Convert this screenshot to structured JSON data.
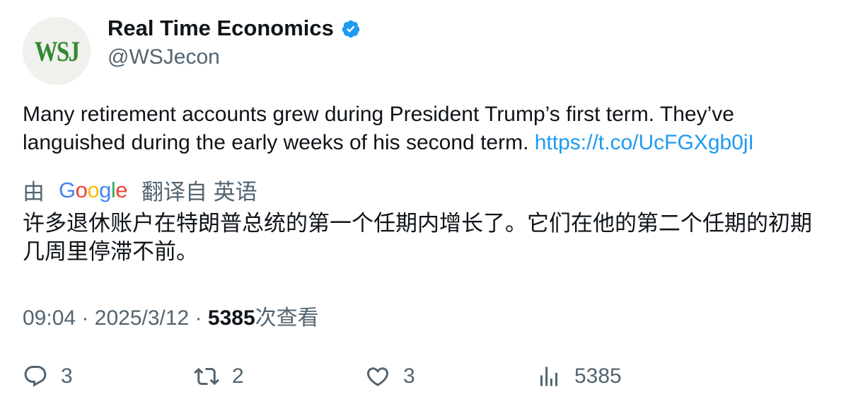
{
  "account": {
    "avatar_text": "WSJ",
    "name": "Real Time Economics",
    "handle": "@WSJecon",
    "verified_color": "#1d9bf0"
  },
  "tweet": {
    "text": "Many retirement accounts grew during President Trump’s first term. They’ve languished during the early weeks of his second term.",
    "link": "https://t.co/UcFGXgb0jI"
  },
  "translation": {
    "by": "由",
    "google_letters": [
      "G",
      "o",
      "o",
      "g",
      "l",
      "e"
    ],
    "translated_from": "翻译自 英语",
    "text": "许多退休账户在特朗普总统的第一个任期内增长了。它们在他的第二个任期的初期几周里停滞不前。"
  },
  "meta": {
    "time": "09:04",
    "date": "2025/3/12",
    "views_count": "5385",
    "views_label": "次查看",
    "separator": "·"
  },
  "actions": {
    "reply": {
      "icon": "reply-icon",
      "count": "3"
    },
    "retweet": {
      "icon": "retweet-icon",
      "count": "2"
    },
    "like": {
      "icon": "heart-icon",
      "count": "3"
    },
    "views": {
      "icon": "analytics-icon",
      "count": "5385"
    }
  }
}
